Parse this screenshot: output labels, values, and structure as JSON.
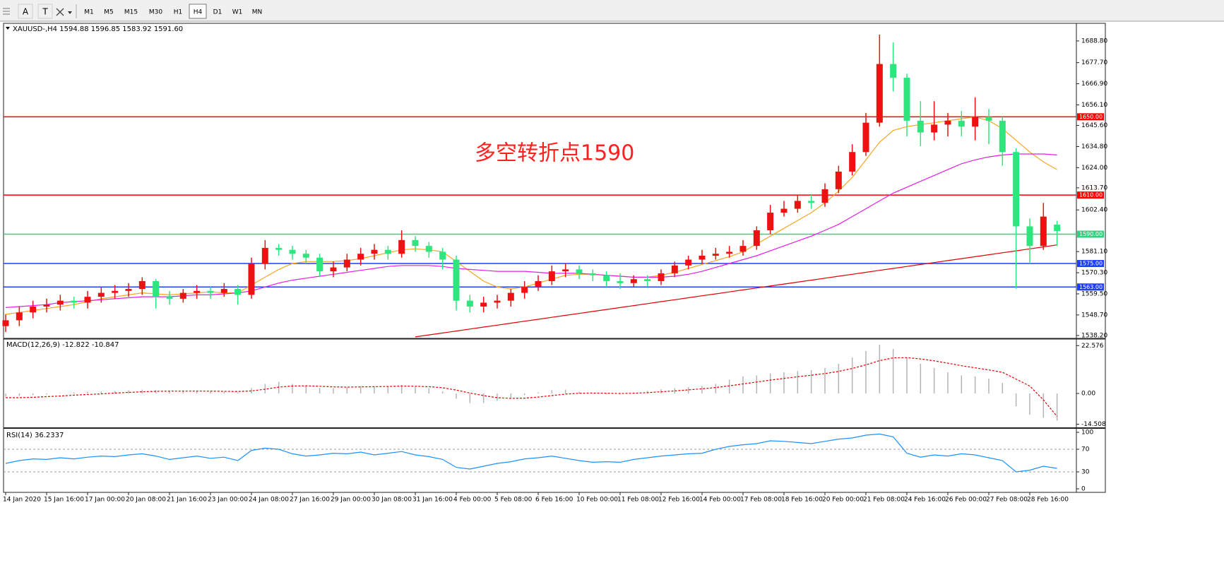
{
  "toolbar": {
    "tools": [
      "A",
      "T"
    ],
    "timeframes": [
      "M1",
      "M5",
      "M15",
      "M30",
      "H1",
      "H4",
      "D1",
      "W1",
      "MN"
    ],
    "active_timeframe": "H4"
  },
  "chart_data": [
    {
      "type": "candlestick",
      "title": "XAUUSD-,H4  1594.88 1596.85 1583.92 1591.60",
      "annotation": "多空转折点1590",
      "categories": [
        "14 Jan 2020",
        null,
        null,
        "15 Jan 16:00",
        null,
        null,
        "17 Jan 00:00",
        null,
        null,
        "20 Jan 08:00",
        null,
        null,
        "21 Jan 16:00",
        null,
        null,
        "23 Jan 00:00",
        null,
        null,
        "24 Jan 08:00",
        null,
        null,
        "27 Jan 16:00",
        null,
        null,
        "29 Jan 00:00",
        null,
        null,
        "30 Jan 08:00",
        null,
        null,
        "31 Jan 16:00",
        null,
        null,
        "4 Feb 00:00",
        null,
        null,
        "5 Feb 08:00",
        null,
        null,
        "6 Feb 16:00",
        null,
        null,
        "10 Feb 00:00",
        null,
        null,
        "11 Feb 08:00",
        null,
        null,
        "12 Feb 16:00",
        null,
        null,
        "14 Feb 00:00",
        null,
        null,
        "17 Feb 08:00",
        null,
        null,
        "18 Feb 16:00",
        null,
        null,
        "20 Feb 00:00",
        null,
        null,
        "21 Feb 08:00",
        null,
        null,
        "24 Feb 16:00",
        null,
        null,
        "26 Feb 00:00",
        null,
        null,
        "27 Feb 08:00",
        null,
        null,
        "28 Feb 16:00",
        null,
        null
      ],
      "open": [
        1543,
        1546,
        1550,
        1553,
        1554,
        1556,
        1555,
        1558,
        1560,
        1561,
        1562,
        1566,
        1558,
        1557,
        1560,
        1561,
        1560,
        1562,
        1559,
        1575,
        1583,
        1582,
        1580,
        1578,
        1571,
        1573,
        1577,
        1580,
        1582,
        1580,
        1587,
        1584,
        1581,
        1577,
        1556,
        1553,
        1555,
        1556,
        1560,
        1563,
        1566,
        1571,
        1572,
        1570,
        1569,
        1566,
        1565,
        1567,
        1566,
        1570,
        1574,
        1577,
        1579,
        1580,
        1581,
        1584,
        1592,
        1601,
        1603,
        1607,
        1606,
        1613,
        1622,
        1632,
        1647,
        1677,
        1670,
        1648,
        1642,
        1646,
        1648,
        1645,
        1650,
        1648,
        1632,
        1594,
        1584,
        1594.88
      ],
      "high": [
        1549,
        1553,
        1556,
        1557,
        1559,
        1558,
        1561,
        1563,
        1564,
        1565,
        1568,
        1567,
        1561,
        1562,
        1564,
        1563,
        1565,
        1564,
        1578,
        1587,
        1585,
        1584,
        1582,
        1580,
        1576,
        1580,
        1583,
        1585,
        1584,
        1592,
        1589,
        1586,
        1583,
        1579,
        1559,
        1558,
        1559,
        1562,
        1566,
        1569,
        1574,
        1575,
        1574,
        1572,
        1571,
        1570,
        1569,
        1569,
        1572,
        1576,
        1579,
        1582,
        1583,
        1584,
        1587,
        1594,
        1605,
        1607,
        1610,
        1610,
        1616,
        1625,
        1636,
        1652,
        1692,
        1688,
        1672,
        1658,
        1658,
        1652,
        1653,
        1660,
        1654,
        1650,
        1634,
        1598,
        1606,
        1596.85
      ],
      "low": [
        1540,
        1543,
        1547,
        1550,
        1551,
        1552,
        1552,
        1555,
        1557,
        1558,
        1559,
        1552,
        1554,
        1555,
        1557,
        1557,
        1558,
        1554,
        1557,
        1572,
        1579,
        1577,
        1575,
        1568,
        1568,
        1571,
        1574,
        1577,
        1577,
        1578,
        1581,
        1578,
        1572,
        1551,
        1550,
        1550,
        1552,
        1553,
        1557,
        1561,
        1564,
        1568,
        1567,
        1566,
        1563,
        1562,
        1563,
        1563,
        1564,
        1568,
        1572,
        1575,
        1577,
        1578,
        1579,
        1582,
        1590,
        1599,
        1601,
        1603,
        1604,
        1611,
        1620,
        1630,
        1645,
        1663,
        1640,
        1635,
        1638,
        1640,
        1640,
        1638,
        1636,
        1625,
        1562,
        1575,
        1582,
        1583.92
      ],
      "close": [
        1546,
        1550,
        1553,
        1554,
        1556,
        1555,
        1558,
        1560,
        1561,
        1562,
        1566,
        1558,
        1557,
        1560,
        1561,
        1560,
        1562,
        1559,
        1575,
        1583,
        1582,
        1580,
        1578,
        1571,
        1573,
        1577,
        1580,
        1582,
        1580,
        1587,
        1584,
        1581,
        1577,
        1556,
        1553,
        1555,
        1556,
        1560,
        1563,
        1566,
        1571,
        1572,
        1570,
        1569,
        1566,
        1565,
        1567,
        1566,
        1570,
        1574,
        1577,
        1579,
        1580,
        1581,
        1584,
        1592,
        1601,
        1603,
        1607,
        1606,
        1613,
        1622,
        1632,
        1647,
        1677,
        1670,
        1648,
        1642,
        1646,
        1648,
        1645,
        1650,
        1648,
        1632,
        1594,
        1584,
        1599,
        1591.6
      ],
      "up_color": "#ee1111",
      "down_color": "#2ee67d",
      "lines": [
        {
          "color": "#f5a623",
          "values": [
            1549,
            1550,
            1551,
            1552,
            1553,
            1554,
            1555.5,
            1557,
            1558,
            1559,
            1560,
            1559.5,
            1559,
            1559.5,
            1560,
            1560.5,
            1560,
            1560,
            1564,
            1568,
            1572,
            1575,
            1576,
            1576,
            1576,
            1576.5,
            1577.5,
            1579,
            1580.5,
            1582,
            1582.5,
            1582,
            1581,
            1576,
            1571,
            1566,
            1563,
            1562,
            1563,
            1565,
            1567,
            1569,
            1569.5,
            1569.5,
            1569,
            1568.5,
            1568,
            1568,
            1569,
            1570.5,
            1572.5,
            1574.5,
            1576.5,
            1578.5,
            1581,
            1585,
            1589,
            1593,
            1597,
            1601,
            1606,
            1612,
            1619,
            1628,
            1637,
            1643,
            1645,
            1646,
            1647,
            1648,
            1649,
            1650,
            1648,
            1644,
            1638,
            1632,
            1627,
            1623
          ]
        },
        {
          "color": "#e61ee6",
          "values": [
            1552.5,
            1553,
            1553.5,
            1554,
            1555,
            1555.5,
            1556,
            1556.5,
            1557,
            1557.5,
            1558,
            1558,
            1558,
            1558.5,
            1559,
            1559,
            1559.5,
            1560,
            1561,
            1563,
            1565,
            1566.5,
            1567.5,
            1568.5,
            1569.5,
            1570.5,
            1571.5,
            1572.5,
            1573.5,
            1574,
            1574,
            1574,
            1573.5,
            1572.5,
            1572,
            1571.5,
            1571,
            1571,
            1571,
            1570.5,
            1570,
            1570,
            1570,
            1569.5,
            1569,
            1568.5,
            1568,
            1568,
            1568,
            1568.5,
            1569.5,
            1571,
            1573,
            1575,
            1577,
            1579,
            1581.5,
            1584,
            1586.5,
            1589,
            1592,
            1595,
            1599,
            1603,
            1607,
            1611,
            1614,
            1617,
            1620,
            1623,
            1626,
            1628,
            1629.5,
            1630.5,
            1631,
            1631,
            1631,
            1630.5
          ]
        },
        {
          "color": "#e00000",
          "values": [
            null,
            null,
            null,
            null,
            null,
            null,
            null,
            null,
            null,
            null,
            null,
            null,
            null,
            null,
            null,
            null,
            null,
            null,
            null,
            null,
            null,
            null,
            null,
            null,
            null,
            null,
            null,
            null,
            null,
            null,
            1537.5,
            1538.5,
            1539.5,
            1540.5,
            1541.5,
            1542.5,
            1543.5,
            1544.5,
            1545.5,
            1546.5,
            1547.5,
            1548.5,
            1549.5,
            1550.5,
            1551.5,
            1552.5,
            1553.5,
            1554.5,
            1555.5,
            1556.5,
            1557.5,
            1558.5,
            1559.5,
            1560.5,
            1561.5,
            1562.5,
            1563.5,
            1564.5,
            1565.5,
            1566.5,
            1567.5,
            1568.5,
            1569.5,
            1570.5,
            1571.5,
            1572.5,
            1573.5,
            1574.5,
            1575.5,
            1576.5,
            1577.5,
            1578.5,
            1579.5,
            1580.5,
            1581.5,
            1582.5,
            1583.5,
            1584.5
          ]
        }
      ],
      "levels": [
        {
          "value": 1650,
          "label": "1650.00",
          "color": "#ff0000"
        },
        {
          "value": 1610,
          "label": "1610.00",
          "color": "#ff0000"
        },
        {
          "value": 1590,
          "label": "1590.00",
          "color": "#2ed47f"
        },
        {
          "value": 1575,
          "label": "1575.00",
          "color": "#1f3fff"
        },
        {
          "value": 1563,
          "label": "1563.00",
          "color": "#1f3fff"
        }
      ],
      "ylim": [
        1537.1,
        1697.8
      ],
      "yticks": [
        {
          "value": 1688.8,
          "label": "1688.80"
        },
        {
          "value": 1677.7,
          "label": "1677.70"
        },
        {
          "value": 1666.9,
          "label": "1666.90"
        },
        {
          "value": 1656.1,
          "label": "1656.10"
        },
        {
          "value": 1645.6,
          "label": "1645.60"
        },
        {
          "value": 1634.8,
          "label": "1634.80"
        },
        {
          "value": 1624,
          "label": "1624.00"
        },
        {
          "value": 1613.7,
          "label": "1613.70"
        },
        {
          "value": 1602.4,
          "label": "1602.40"
        },
        {
          "value": 1581.1,
          "label": "1581.10"
        },
        {
          "value": 1570.3,
          "label": "1570.30"
        },
        {
          "value": 1559.5,
          "label": "1559.50"
        },
        {
          "value": 1548.7,
          "label": "1548.70"
        },
        {
          "value": 1538.2,
          "label": "1538.20"
        }
      ]
    },
    {
      "type": "macd",
      "title": "MACD(12,26,9) -12.822 -10.847",
      "values": [
        -1.5,
        -1.2,
        -0.8,
        -0.5,
        0.2,
        0.5,
        0.8,
        1,
        1.2,
        1.5,
        1.8,
        1.6,
        1,
        1,
        1.2,
        1,
        0.8,
        0.5,
        2.5,
        4.5,
        5.5,
        4.5,
        3.5,
        2.5,
        2.5,
        3,
        3.5,
        3,
        3.5,
        4,
        3,
        2.5,
        1,
        -2.5,
        -4.5,
        -4.5,
        -3.5,
        -2,
        -0.8,
        0.5,
        1.5,
        1.8,
        0.8,
        0,
        -0.5,
        -0.5,
        0.5,
        1.2,
        2,
        2.5,
        3,
        3.5,
        4.5,
        6.5,
        8,
        8.5,
        9.5,
        10,
        10.5,
        11,
        12,
        14,
        17,
        20,
        23,
        21,
        17,
        14,
        12,
        10,
        8.5,
        8,
        7,
        5,
        -6,
        -10,
        -11.5,
        -12.822
      ],
      "signal": [
        -2,
        -2,
        -1.8,
        -1.5,
        -1.2,
        -0.8,
        -0.5,
        -0.2,
        0.2,
        0.5,
        0.8,
        1,
        1.1,
        1.1,
        1.1,
        1.1,
        1,
        0.9,
        1.2,
        2,
        3,
        3.5,
        3.6,
        3.4,
        3.1,
        3,
        3.1,
        3.2,
        3.3,
        3.5,
        3.4,
        3.2,
        2.7,
        1.6,
        0.2,
        -1,
        -2,
        -2.3,
        -2.2,
        -1.7,
        -1,
        -0.3,
        0.1,
        0.2,
        0.1,
        0,
        0.1,
        0.4,
        0.8,
        1.2,
        1.7,
        2.2,
        2.8,
        3.6,
        4.5,
        5.4,
        6.3,
        7.1,
        7.9,
        8.6,
        9.4,
        10.4,
        11.8,
        13.5,
        15.5,
        16.8,
        16.9,
        16.3,
        15.4,
        14.3,
        13.1,
        12.1,
        11.1,
        10,
        6.8,
        3.5,
        -3,
        -10.847
      ],
      "color": "#b4b4b4",
      "signal_color": "#e00000",
      "ylim": [
        -16,
        25.33
      ],
      "yticks": [
        22.576,
        {
          "value": 0,
          "label": "0.00"
        },
        -14.508
      ]
    },
    {
      "type": "rsi",
      "title": "RSI(14) 36.2337",
      "values": [
        45,
        50,
        53,
        52,
        55,
        53,
        56,
        58,
        57,
        60,
        62,
        58,
        52,
        55,
        58,
        54,
        56,
        50,
        68,
        72,
        70,
        62,
        58,
        60,
        63,
        62,
        65,
        60,
        63,
        66,
        60,
        57,
        52,
        38,
        35,
        40,
        45,
        48,
        53,
        55,
        58,
        54,
        50,
        47,
        48,
        47,
        52,
        55,
        58,
        60,
        62,
        63,
        70,
        75,
        78,
        80,
        85,
        84,
        82,
        80,
        84,
        88,
        90,
        95,
        97,
        92,
        63,
        56,
        60,
        58,
        62,
        60,
        55,
        50,
        30,
        33,
        40,
        36.2337
      ],
      "color": "#1e90ff",
      "levels": [
        70,
        30
      ],
      "ylim": [
        -6.25,
        106.25
      ],
      "yticks": [
        100,
        70,
        30,
        0
      ]
    }
  ]
}
